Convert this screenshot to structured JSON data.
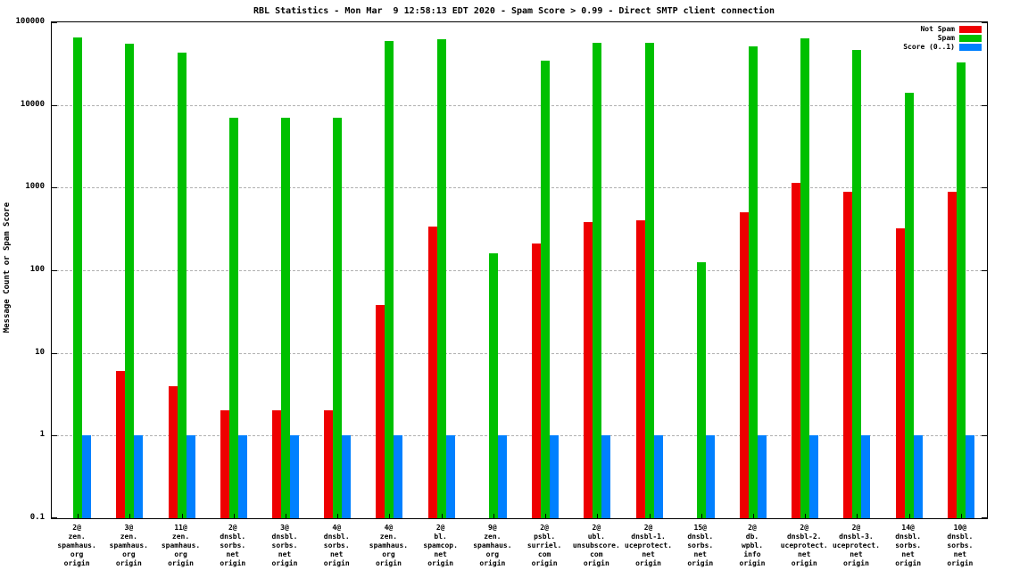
{
  "title": "RBL Statistics - Mon Mar  9 12:58:13 EDT 2020 - Spam Score > 0.99 - Direct SMTP client connection",
  "y_axis_label": "Message Count or Spam Score",
  "chart_data": {
    "type": "bar",
    "title": "RBL Statistics - Mon Mar  9 12:58:13 EDT 2020 - Spam Score > 0.99 - Direct SMTP client connection",
    "ylabel": "Message Count or Spam Score",
    "xlabel": "",
    "y_scale": "log",
    "ylim": [
      0.1,
      100000
    ],
    "y_ticks": [
      0.1,
      1,
      10,
      100,
      1000,
      10000,
      100000
    ],
    "grid": true,
    "legend_position": "top-right",
    "categories": [
      [
        "2@",
        "zen.",
        "spamhaus.",
        "org",
        "origin"
      ],
      [
        "3@",
        "zen.",
        "spamhaus.",
        "org",
        "origin"
      ],
      [
        "11@",
        "zen.",
        "spamhaus.",
        "org",
        "origin"
      ],
      [
        "2@",
        "dnsbl.",
        "sorbs.",
        "net",
        "origin"
      ],
      [
        "3@",
        "dnsbl.",
        "sorbs.",
        "net",
        "origin"
      ],
      [
        "4@",
        "dnsbl.",
        "sorbs.",
        "net",
        "origin"
      ],
      [
        "4@",
        "zen.",
        "spamhaus.",
        "org",
        "origin"
      ],
      [
        "2@",
        "bl.",
        "spamcop.",
        "net",
        "origin"
      ],
      [
        "9@",
        "zen.",
        "spamhaus.",
        "org",
        "origin"
      ],
      [
        "2@",
        "psbl.",
        "surriel.",
        "com",
        "origin"
      ],
      [
        "2@",
        "ubl.",
        "unsubscore.",
        "com",
        "origin"
      ],
      [
        "2@",
        "dnsbl-1.",
        "uceprotect.",
        "net",
        "origin"
      ],
      [
        "15@",
        "dnsbl.",
        "sorbs.",
        "net",
        "origin"
      ],
      [
        "2@",
        "db.",
        "wpbl.",
        "info",
        "origin"
      ],
      [
        "2@",
        "dnsbl-2.",
        "uceprotect.",
        "net",
        "origin"
      ],
      [
        "2@",
        "dnsbl-3.",
        "uceprotect.",
        "net",
        "origin"
      ],
      [
        "14@",
        "dnsbl.",
        "sorbs.",
        "net",
        "origin"
      ],
      [
        "10@",
        "dnsbl.",
        "sorbs.",
        "net",
        "origin"
      ]
    ],
    "series": [
      {
        "name": "Not Spam",
        "color": "#ee0000",
        "values": [
          0,
          6,
          4,
          2,
          2,
          2,
          38,
          340,
          0,
          210,
          380,
          400,
          0,
          500,
          1150,
          900,
          320,
          900
        ]
      },
      {
        "name": "Spam",
        "color": "#00c000",
        "values": [
          65000,
          55000,
          43000,
          7000,
          7000,
          7000,
          60000,
          62000,
          160,
          34000,
          57000,
          57000,
          125,
          51000,
          64000,
          46000,
          14000,
          33000
        ]
      },
      {
        "name": "Score (0..1)",
        "color": "#0080ff",
        "values": [
          1,
          1,
          1,
          1,
          1,
          1,
          1,
          1,
          1,
          1,
          1,
          1,
          1,
          1,
          1,
          1,
          1,
          1
        ]
      }
    ]
  }
}
